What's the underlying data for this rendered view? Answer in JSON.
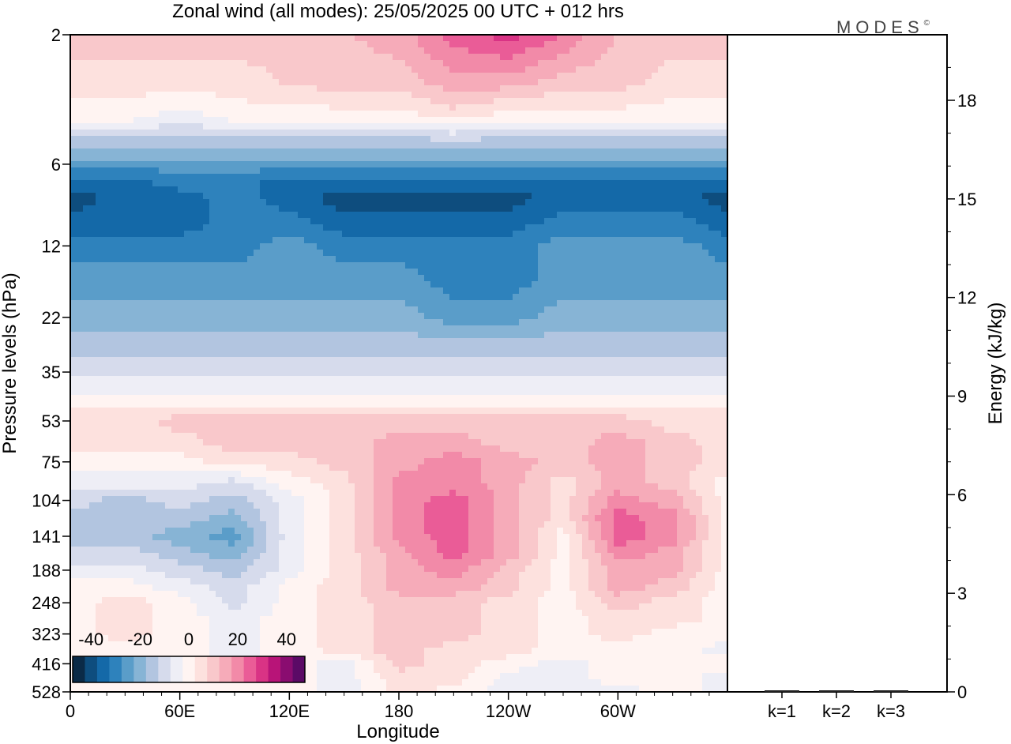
{
  "title": "Zonal wind (all modes):  25/05/2025  00 UTC  + 012 hrs",
  "logo": "MODES",
  "logo_mark": "©",
  "chart_data": [
    {
      "type": "heatmap",
      "xlabel": "Longitude",
      "ylabel": "Pressure levels (hPa)",
      "x_ticks": [
        "0",
        "60E",
        "120E",
        "180",
        "120W",
        "60W"
      ],
      "y_ticks": [
        "2",
        "6",
        "12",
        "22",
        "35",
        "53",
        "75",
        "104",
        "141",
        "188",
        "248",
        "323",
        "416",
        "528"
      ],
      "y_scale": "log",
      "y_inverted": true,
      "colorbar": {
        "ticks": [
          "-40",
          "-20",
          "0",
          "20",
          "40"
        ],
        "levels": [
          -45,
          -40,
          -35,
          -30,
          -25,
          -20,
          -15,
          -10,
          -5,
          0,
          5,
          10,
          15,
          20,
          25,
          30,
          35,
          40,
          45
        ],
        "colors": [
          "#0b2a47",
          "#0e4d7e",
          "#1469a8",
          "#2e82bc",
          "#5a9dc9",
          "#87b4d5",
          "#b2c5e0",
          "#d6dbec",
          "#eeeef6",
          "#fff4f2",
          "#fde1de",
          "#f9c8cb",
          "#f6abb9",
          "#f28aa8",
          "#ea5c97",
          "#d93385",
          "#b81478",
          "#8a0c70",
          "#5b0a66"
        ]
      },
      "value_grid_note": "Approximate zonal wind (m/s); rows by pressure level, columns by longitude",
      "grid_longitudes": [
        0,
        30,
        60,
        90,
        120,
        150,
        180,
        210,
        240,
        270,
        300,
        330,
        360
      ],
      "grid_levels": [
        2,
        3,
        4,
        5,
        6,
        7,
        8,
        10,
        12,
        16,
        22,
        28,
        35,
        44,
        53,
        64,
        75,
        90,
        104,
        122,
        141,
        165,
        188,
        218,
        248,
        285,
        323,
        370,
        416,
        470,
        528
      ],
      "grid_values": [
        [
          10,
          10,
          10,
          10,
          10,
          12,
          15,
          25,
          30,
          22,
          12,
          10,
          10
        ],
        [
          5,
          5,
          5,
          5,
          8,
          10,
          10,
          15,
          15,
          10,
          10,
          5,
          5
        ],
        [
          0,
          0,
          -5,
          0,
          0,
          0,
          0,
          5,
          0,
          0,
          0,
          0,
          0
        ],
        [
          -15,
          -15,
          -15,
          -15,
          -15,
          -15,
          -15,
          -15,
          -15,
          -15,
          -15,
          -15,
          -15
        ],
        [
          -25,
          -25,
          -25,
          -25,
          -25,
          -25,
          -25,
          -25,
          -25,
          -25,
          -25,
          -25,
          -25
        ],
        [
          -35,
          -35,
          -30,
          -30,
          -35,
          -35,
          -35,
          -35,
          -35,
          -35,
          -35,
          -35,
          -35
        ],
        [
          -40,
          -35,
          -35,
          -30,
          -35,
          -40,
          -40,
          -40,
          -40,
          -35,
          -35,
          -35,
          -40
        ],
        [
          -35,
          -35,
          -35,
          -30,
          -30,
          -35,
          -35,
          -35,
          -35,
          -30,
          -30,
          -30,
          -35
        ],
        [
          -30,
          -30,
          -30,
          -30,
          -25,
          -30,
          -30,
          -30,
          -30,
          -25,
          -25,
          -25,
          -30
        ],
        [
          -25,
          -25,
          -25,
          -25,
          -25,
          -25,
          -25,
          -30,
          -30,
          -25,
          -25,
          -25,
          -25
        ],
        [
          -20,
          -20,
          -20,
          -20,
          -20,
          -20,
          -20,
          -25,
          -25,
          -20,
          -20,
          -20,
          -20
        ],
        [
          -15,
          -15,
          -15,
          -15,
          -15,
          -15,
          -15,
          -15,
          -15,
          -15,
          -15,
          -15,
          -15
        ],
        [
          -10,
          -10,
          -10,
          -10,
          -10,
          -10,
          -10,
          -10,
          -10,
          -10,
          -10,
          -10,
          -10
        ],
        [
          0,
          0,
          0,
          0,
          0,
          0,
          0,
          0,
          0,
          0,
          0,
          0,
          0
        ],
        [
          5,
          5,
          10,
          10,
          10,
          10,
          10,
          10,
          10,
          10,
          10,
          5,
          5
        ],
        [
          5,
          5,
          5,
          10,
          10,
          10,
          15,
          15,
          10,
          10,
          15,
          10,
          5
        ],
        [
          0,
          0,
          0,
          5,
          5,
          10,
          15,
          20,
          15,
          10,
          15,
          10,
          5
        ],
        [
          -5,
          -5,
          -5,
          -10,
          0,
          5,
          20,
          20,
          15,
          5,
          15,
          10,
          0
        ],
        [
          -10,
          -15,
          -10,
          -15,
          -5,
          5,
          20,
          25,
          15,
          5,
          20,
          15,
          0
        ],
        [
          -15,
          -15,
          -15,
          -20,
          -5,
          5,
          20,
          25,
          15,
          5,
          25,
          20,
          0
        ],
        [
          -15,
          -15,
          -20,
          -25,
          -5,
          5,
          20,
          25,
          15,
          0,
          25,
          20,
          0
        ],
        [
          -10,
          -10,
          -15,
          -20,
          -5,
          5,
          15,
          25,
          15,
          0,
          20,
          15,
          0
        ],
        [
          -5,
          -5,
          -10,
          -15,
          -5,
          5,
          15,
          20,
          10,
          0,
          15,
          15,
          0
        ],
        [
          0,
          0,
          -5,
          -10,
          0,
          5,
          15,
          15,
          10,
          0,
          15,
          10,
          0
        ],
        [
          0,
          5,
          0,
          -10,
          0,
          5,
          10,
          10,
          5,
          0,
          10,
          5,
          0
        ],
        [
          0,
          5,
          0,
          -5,
          0,
          5,
          10,
          10,
          5,
          0,
          5,
          5,
          0
        ],
        [
          0,
          5,
          0,
          -5,
          0,
          5,
          10,
          10,
          5,
          0,
          5,
          0,
          0
        ],
        [
          0,
          0,
          0,
          -5,
          0,
          5,
          10,
          5,
          5,
          0,
          0,
          0,
          -5
        ],
        [
          0,
          0,
          0,
          -5,
          0,
          -5,
          10,
          5,
          0,
          -5,
          0,
          0,
          0
        ],
        [
          0,
          0,
          0,
          0,
          0,
          -5,
          5,
          5,
          -5,
          -5,
          0,
          0,
          -5
        ],
        [
          0,
          0,
          0,
          0,
          0,
          -5,
          5,
          0,
          -5,
          -5,
          -5,
          0,
          -5
        ]
      ]
    },
    {
      "type": "bar",
      "categories": [
        "k=1",
        "k=2",
        "k=3"
      ],
      "values": [
        0.02,
        0.02,
        0.02
      ],
      "ylabel": "Energy (kJ/kg)",
      "ylim": [
        0,
        20
      ],
      "y_ticks": [
        "0",
        "3",
        "6",
        "9",
        "12",
        "15",
        "18"
      ]
    }
  ]
}
